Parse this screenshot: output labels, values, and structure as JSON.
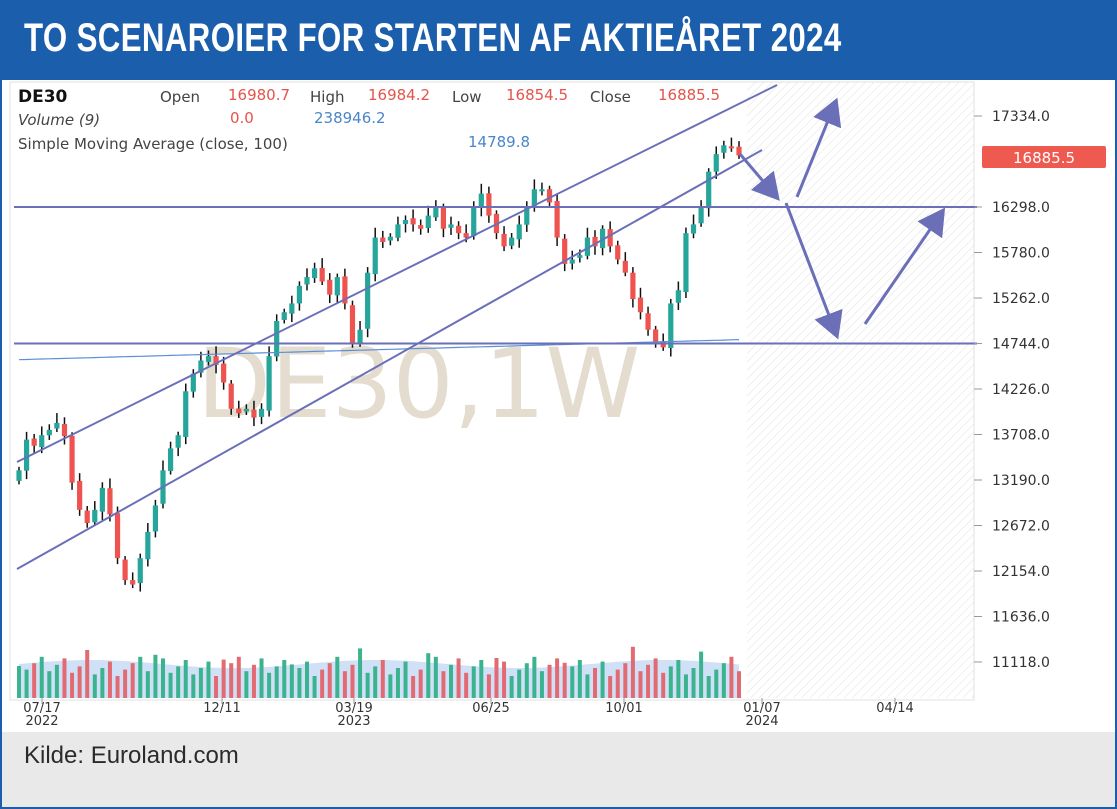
{
  "header": {
    "title": "TO SCENAROIER FOR STARTEN AF AKTIEÅRET 2024"
  },
  "footer": {
    "source": "Kilde: Euroland.com"
  },
  "colors": {
    "accent": "#1b5eab",
    "up": "#26a69a",
    "down": "#ef5350",
    "line": "#6a6fb8",
    "sma": "#5b8fd6"
  },
  "chart_data": {
    "type": "candlestick",
    "symbol": "DE30",
    "info": {
      "open_label": "Open",
      "open": "16980.7",
      "high_label": "High",
      "high": "16984.2",
      "low_label": "Low",
      "low": "16854.5",
      "close_label": "Close",
      "close": "16885.5",
      "volume_label": "Volume (9)",
      "volume_a": "0.0",
      "volume_b": "238946.2",
      "sma_label": "Simple Moving Average (close, 100)",
      "sma": "14789.8"
    },
    "watermark": "DE30,1W",
    "last_price_badge": "16885.5",
    "y_ticks": [
      "17334.0",
      "16298.0",
      "15780.0",
      "15262.0",
      "14744.0",
      "14226.0",
      "13708.0",
      "13190.0",
      "12672.0",
      "12154.0",
      "11636.0",
      "11118.0"
    ],
    "x_ticks": [
      {
        "label": "07/17",
        "year": "2022"
      },
      {
        "label": "12/11",
        "year": ""
      },
      {
        "label": "03/19",
        "year": "2023"
      },
      {
        "label": "06/25",
        "year": ""
      },
      {
        "label": "10/01",
        "year": ""
      },
      {
        "label": "01/07",
        "year": "2024"
      },
      {
        "label": "04/14",
        "year": ""
      }
    ],
    "candles_close": [
      13300,
      13650,
      13580,
      13700,
      13760,
      13840,
      13690,
      13160,
      12850,
      12700,
      12850,
      13100,
      12800,
      12300,
      12050,
      12000,
      12300,
      12600,
      12900,
      13300,
      13550,
      13700,
      14200,
      14400,
      14550,
      14600,
      14500,
      14300,
      14000,
      13950,
      14000,
      13900,
      14000,
      14600,
      15000,
      15100,
      15200,
      15400,
      15500,
      15600,
      15450,
      15300,
      15500,
      15200,
      14750,
      14900,
      15550,
      15950,
      15900,
      15960,
      16100,
      16150,
      16100,
      16050,
      16200,
      16300,
      16050,
      16100,
      16000,
      15950,
      16300,
      16450,
      16200,
      16000,
      15850,
      15950,
      16100,
      16300,
      16500,
      16500,
      16350,
      15950,
      15650,
      15700,
      15750,
      15950,
      15850,
      16050,
      15850,
      15700,
      15550,
      15250,
      15100,
      14900,
      14750,
      14700,
      15200,
      15350,
      16000,
      16100,
      16300,
      16700,
      16900,
      17000,
      16980,
      16885.5
    ],
    "resistance_level": 16298,
    "support_level": 14744
  }
}
